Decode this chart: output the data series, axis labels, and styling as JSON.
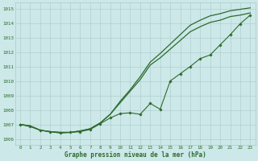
{
  "x": [
    0,
    1,
    2,
    3,
    4,
    5,
    6,
    7,
    8,
    9,
    10,
    11,
    12,
    13,
    14,
    15,
    16,
    17,
    18,
    19,
    20,
    21,
    22,
    23
  ],
  "line_upper": [
    1007.0,
    1006.9,
    1006.6,
    1006.5,
    1006.45,
    1006.45,
    1006.55,
    1006.7,
    1007.1,
    1007.7,
    1008.6,
    1009.4,
    1010.3,
    1011.3,
    1011.9,
    1012.55,
    1013.2,
    1013.85,
    1014.2,
    1014.5,
    1014.65,
    1014.85,
    1014.95,
    1015.05
  ],
  "line_mid": [
    1007.0,
    1006.9,
    1006.6,
    1006.5,
    1006.45,
    1006.45,
    1006.55,
    1006.7,
    1007.1,
    1007.7,
    1008.5,
    1009.3,
    1010.1,
    1011.1,
    1011.6,
    1012.2,
    1012.8,
    1013.4,
    1013.75,
    1014.05,
    1014.2,
    1014.45,
    1014.55,
    1014.7
  ],
  "line_markers": [
    1007.0,
    1006.85,
    1006.6,
    1006.5,
    1006.4,
    1006.45,
    1006.5,
    1006.65,
    1007.05,
    1007.45,
    1007.75,
    1007.8,
    1007.7,
    1008.45,
    1008.05,
    1010.0,
    1010.5,
    1011.0,
    1011.55,
    1011.8,
    1012.5,
    1013.2,
    1013.95,
    1014.55
  ],
  "ylim": [
    1005.6,
    1015.4
  ],
  "yticks": [
    1006,
    1007,
    1008,
    1009,
    1010,
    1011,
    1012,
    1013,
    1014,
    1015
  ],
  "xlabel": "Graphe pression niveau de la mer (hPa)",
  "line_color": "#2d6a2d",
  "bg_color": "#cce8e8",
  "grid_color": "#aacaca",
  "label_color": "#2d6a2d"
}
